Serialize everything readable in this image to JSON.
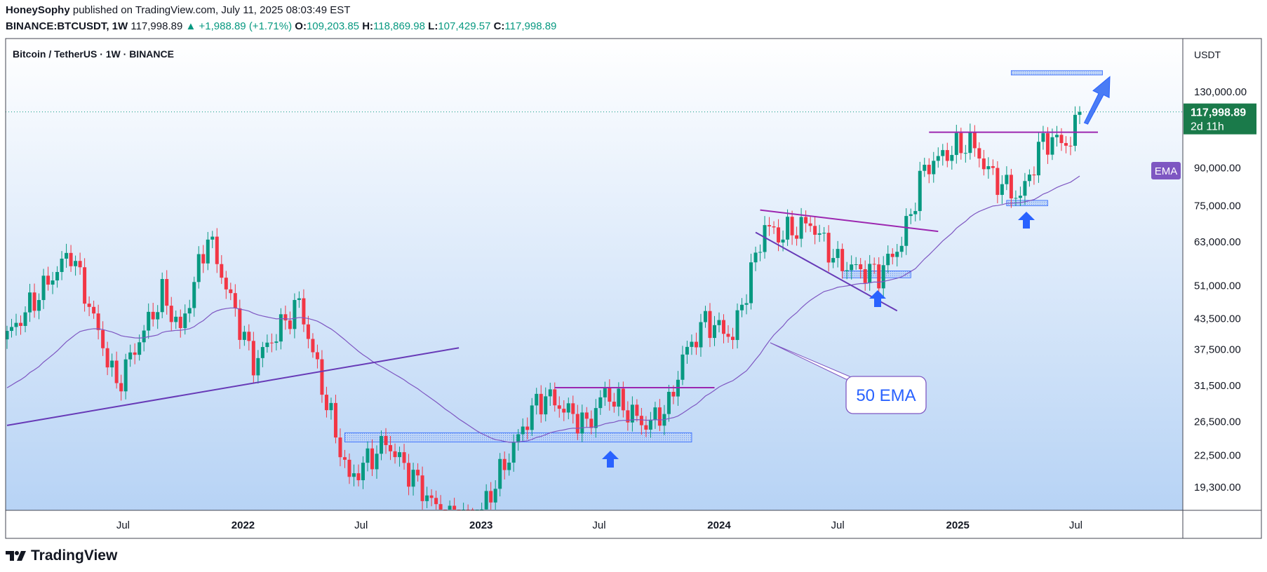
{
  "header": {
    "author": "HoneySophy",
    "published_text": "published on TradingView.com, July 11, 2025 08:03:49 EST",
    "symbol": "BINANCE:BTCUSDT, 1W",
    "last": "117,998.89",
    "change": "▲ +1,988.89 (+1.71%)",
    "o_label": "O:",
    "o": "109,203.85",
    "h_label": "H:",
    "h": "118,869.98",
    "l_label": "L:",
    "l": "107,429.57",
    "c_label": "C:",
    "c": "117,998.89"
  },
  "legend_title": "Bitcoin / TetherUS · 1W · BINANCE",
  "currency": "USDT",
  "price_badge": {
    "price": "117,998.89",
    "countdown": "2d 11h"
  },
  "ema_badge": "EMA",
  "annotation_text": "50 EMA",
  "footer": {
    "brand": "TradingView"
  },
  "colors": {
    "up": "#089981",
    "down": "#f23645",
    "ema": "#7e57c2",
    "pattern_line": "#9c27b0",
    "zone": "#2962ff",
    "arrow": "#2962ff",
    "bg_top": "#ffffff",
    "bg_bottom": "#b3d1f5"
  },
  "chart_data": {
    "type": "candlestick",
    "title": "Bitcoin / TetherUS · 1W · BINANCE",
    "scale": "log",
    "ylim": [
      16500,
      145000
    ],
    "y_ticks": [
      130000,
      90000,
      75000,
      63000,
      51000,
      43500,
      37500,
      31500,
      26500,
      22500,
      19300
    ],
    "y_tick_labels": [
      "130,000.00",
      "90,000.00",
      "75,000.00",
      "63,000.00",
      "51,000.00",
      "43,500.00",
      "37,500.00",
      "31,500.00",
      "26,500.00",
      "22,500.00",
      "19,300.00"
    ],
    "x_ticks": [
      {
        "label": "Jul",
        "date": "2021-07-01"
      },
      {
        "label": "2022",
        "date": "2022-01-01"
      },
      {
        "label": "Jul",
        "date": "2022-07-01"
      },
      {
        "label": "2023",
        "date": "2023-01-01"
      },
      {
        "label": "Jul",
        "date": "2023-07-01"
      },
      {
        "label": "2024",
        "date": "2024-01-01"
      },
      {
        "label": "Jul",
        "date": "2024-07-01"
      },
      {
        "label": "2025",
        "date": "2025-01-01"
      },
      {
        "label": "Jul",
        "date": "2025-07-01"
      }
    ],
    "key_points": [
      {
        "date": "2021-01-04",
        "close": 40000
      },
      {
        "date": "2021-04-12",
        "close": 60000
      },
      {
        "date": "2021-06-21",
        "close": 31500
      },
      {
        "date": "2021-08-30",
        "close": 49000
      },
      {
        "date": "2021-09-27",
        "close": 41000
      },
      {
        "date": "2021-11-08",
        "close": 65000
      },
      {
        "date": "2022-01-17",
        "close": 35000
      },
      {
        "date": "2022-03-28",
        "close": 47000
      },
      {
        "date": "2022-05-09",
        "close": 29000
      },
      {
        "date": "2022-06-13",
        "close": 20000
      },
      {
        "date": "2022-08-08",
        "close": 24000
      },
      {
        "date": "2022-11-07",
        "close": 16500
      },
      {
        "date": "2022-12-26",
        "close": 16500
      },
      {
        "date": "2023-03-20",
        "close": 28000
      },
      {
        "date": "2023-04-10",
        "close": 30000
      },
      {
        "date": "2023-06-12",
        "close": 26000
      },
      {
        "date": "2023-07-10",
        "close": 30500
      },
      {
        "date": "2023-09-11",
        "close": 26000
      },
      {
        "date": "2023-10-16",
        "close": 28500
      },
      {
        "date": "2023-11-06",
        "close": 36000
      },
      {
        "date": "2023-12-11",
        "close": 43000
      },
      {
        "date": "2024-01-22",
        "close": 40000
      },
      {
        "date": "2024-03-11",
        "close": 68000
      },
      {
        "date": "2024-04-01",
        "close": 65000
      },
      {
        "date": "2024-05-20",
        "close": 69000
      },
      {
        "date": "2024-07-01",
        "close": 57000
      },
      {
        "date": "2024-08-05",
        "close": 55000
      },
      {
        "date": "2024-09-02",
        "close": 54000
      },
      {
        "date": "2024-10-07",
        "close": 63000
      },
      {
        "date": "2024-11-11",
        "close": 90000
      },
      {
        "date": "2024-12-16",
        "close": 97000
      },
      {
        "date": "2025-01-20",
        "close": 102000
      },
      {
        "date": "2025-02-24",
        "close": 86000
      },
      {
        "date": "2025-04-07",
        "close": 78000
      },
      {
        "date": "2025-05-12",
        "close": 103000
      },
      {
        "date": "2025-06-23",
        "close": 102000
      },
      {
        "date": "2025-07-07",
        "close": 117998.89
      }
    ],
    "ema_period": 50,
    "last_price": 117998.89
  }
}
